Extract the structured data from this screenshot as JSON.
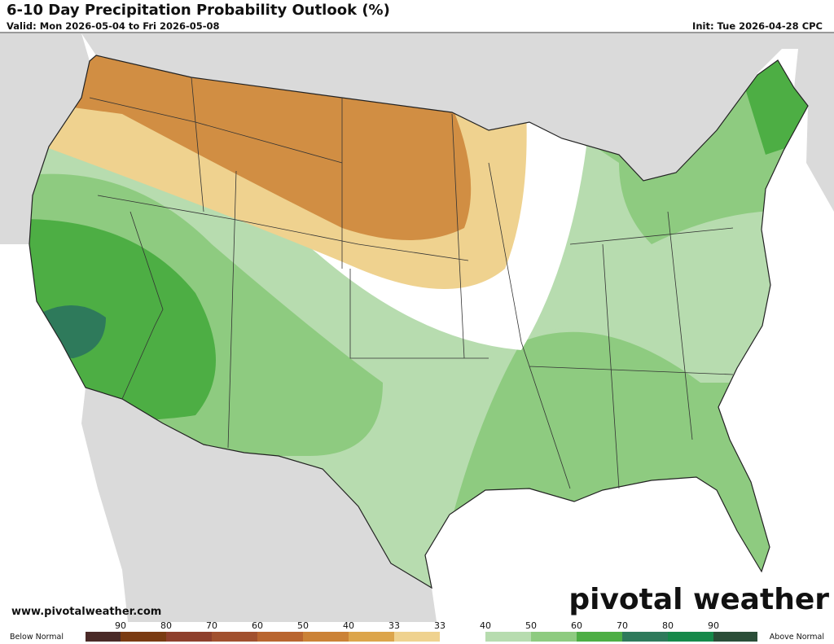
{
  "header": {
    "title": "6-10 Day Precipitation Probability Outlook (%)",
    "valid": "Valid: Mon 2026-05-04 to Fri 2026-05-08",
    "init": "Init: Tue 2026-04-28 CPC"
  },
  "footer": {
    "site": "www.pivotalweather.com",
    "logo": "pivotal weather"
  },
  "legend": {
    "left_label": "Below Normal",
    "right_label": "Above Normal",
    "labels": [
      90,
      80,
      70,
      60,
      50,
      40,
      33,
      33,
      40,
      50,
      60,
      70,
      80,
      90
    ],
    "colors": [
      "#4a2a27",
      "#7a3b12",
      "#8e3f2c",
      "#a1502e",
      "#b9652f",
      "#cb8236",
      "#dca54b",
      "#efd28f",
      "#ffffff",
      "#b7dcaf",
      "#8ecb80",
      "#4dae44",
      "#2e7a5b",
      "#16894a",
      "#2b4e38"
    ]
  }
}
